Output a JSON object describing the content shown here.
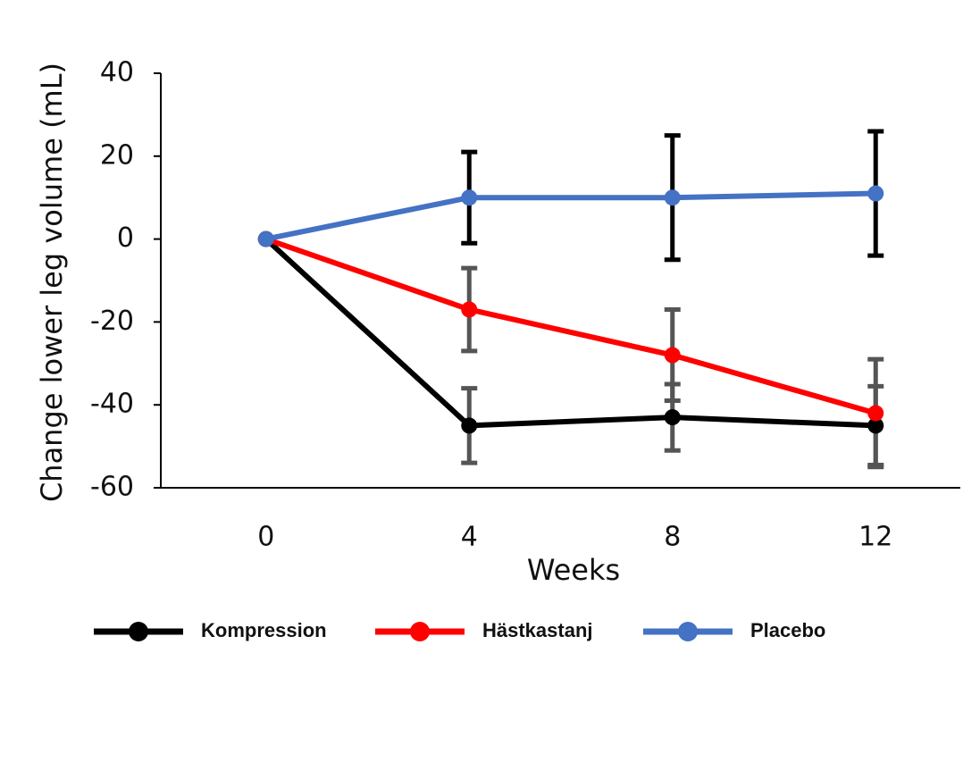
{
  "chart_data": {
    "type": "line",
    "categories": [
      "0",
      "4",
      "8",
      "12"
    ],
    "x_label": "Weeks",
    "y_label": "Change lower leg volume (mL)",
    "ylim": [
      -60,
      40
    ],
    "yticks": [
      -60,
      -40,
      -20,
      0,
      20,
      40
    ],
    "series": [
      {
        "name": "Kompression",
        "color": "#000000",
        "error_color": "#555555",
        "values": [
          0,
          -45,
          -43,
          -45
        ],
        "errors": [
          null,
          9,
          8,
          9.5
        ]
      },
      {
        "name": "Hästkastanj",
        "color": "#ff0000",
        "error_color": "#555555",
        "values": [
          0,
          -17,
          -28,
          -42
        ],
        "errors": [
          null,
          10,
          11,
          13
        ]
      },
      {
        "name": "Placebo",
        "color": "#4472c4",
        "error_color": "#000000",
        "values": [
          0,
          10,
          10,
          11
        ],
        "errors": [
          null,
          11,
          15,
          15
        ]
      }
    ]
  }
}
